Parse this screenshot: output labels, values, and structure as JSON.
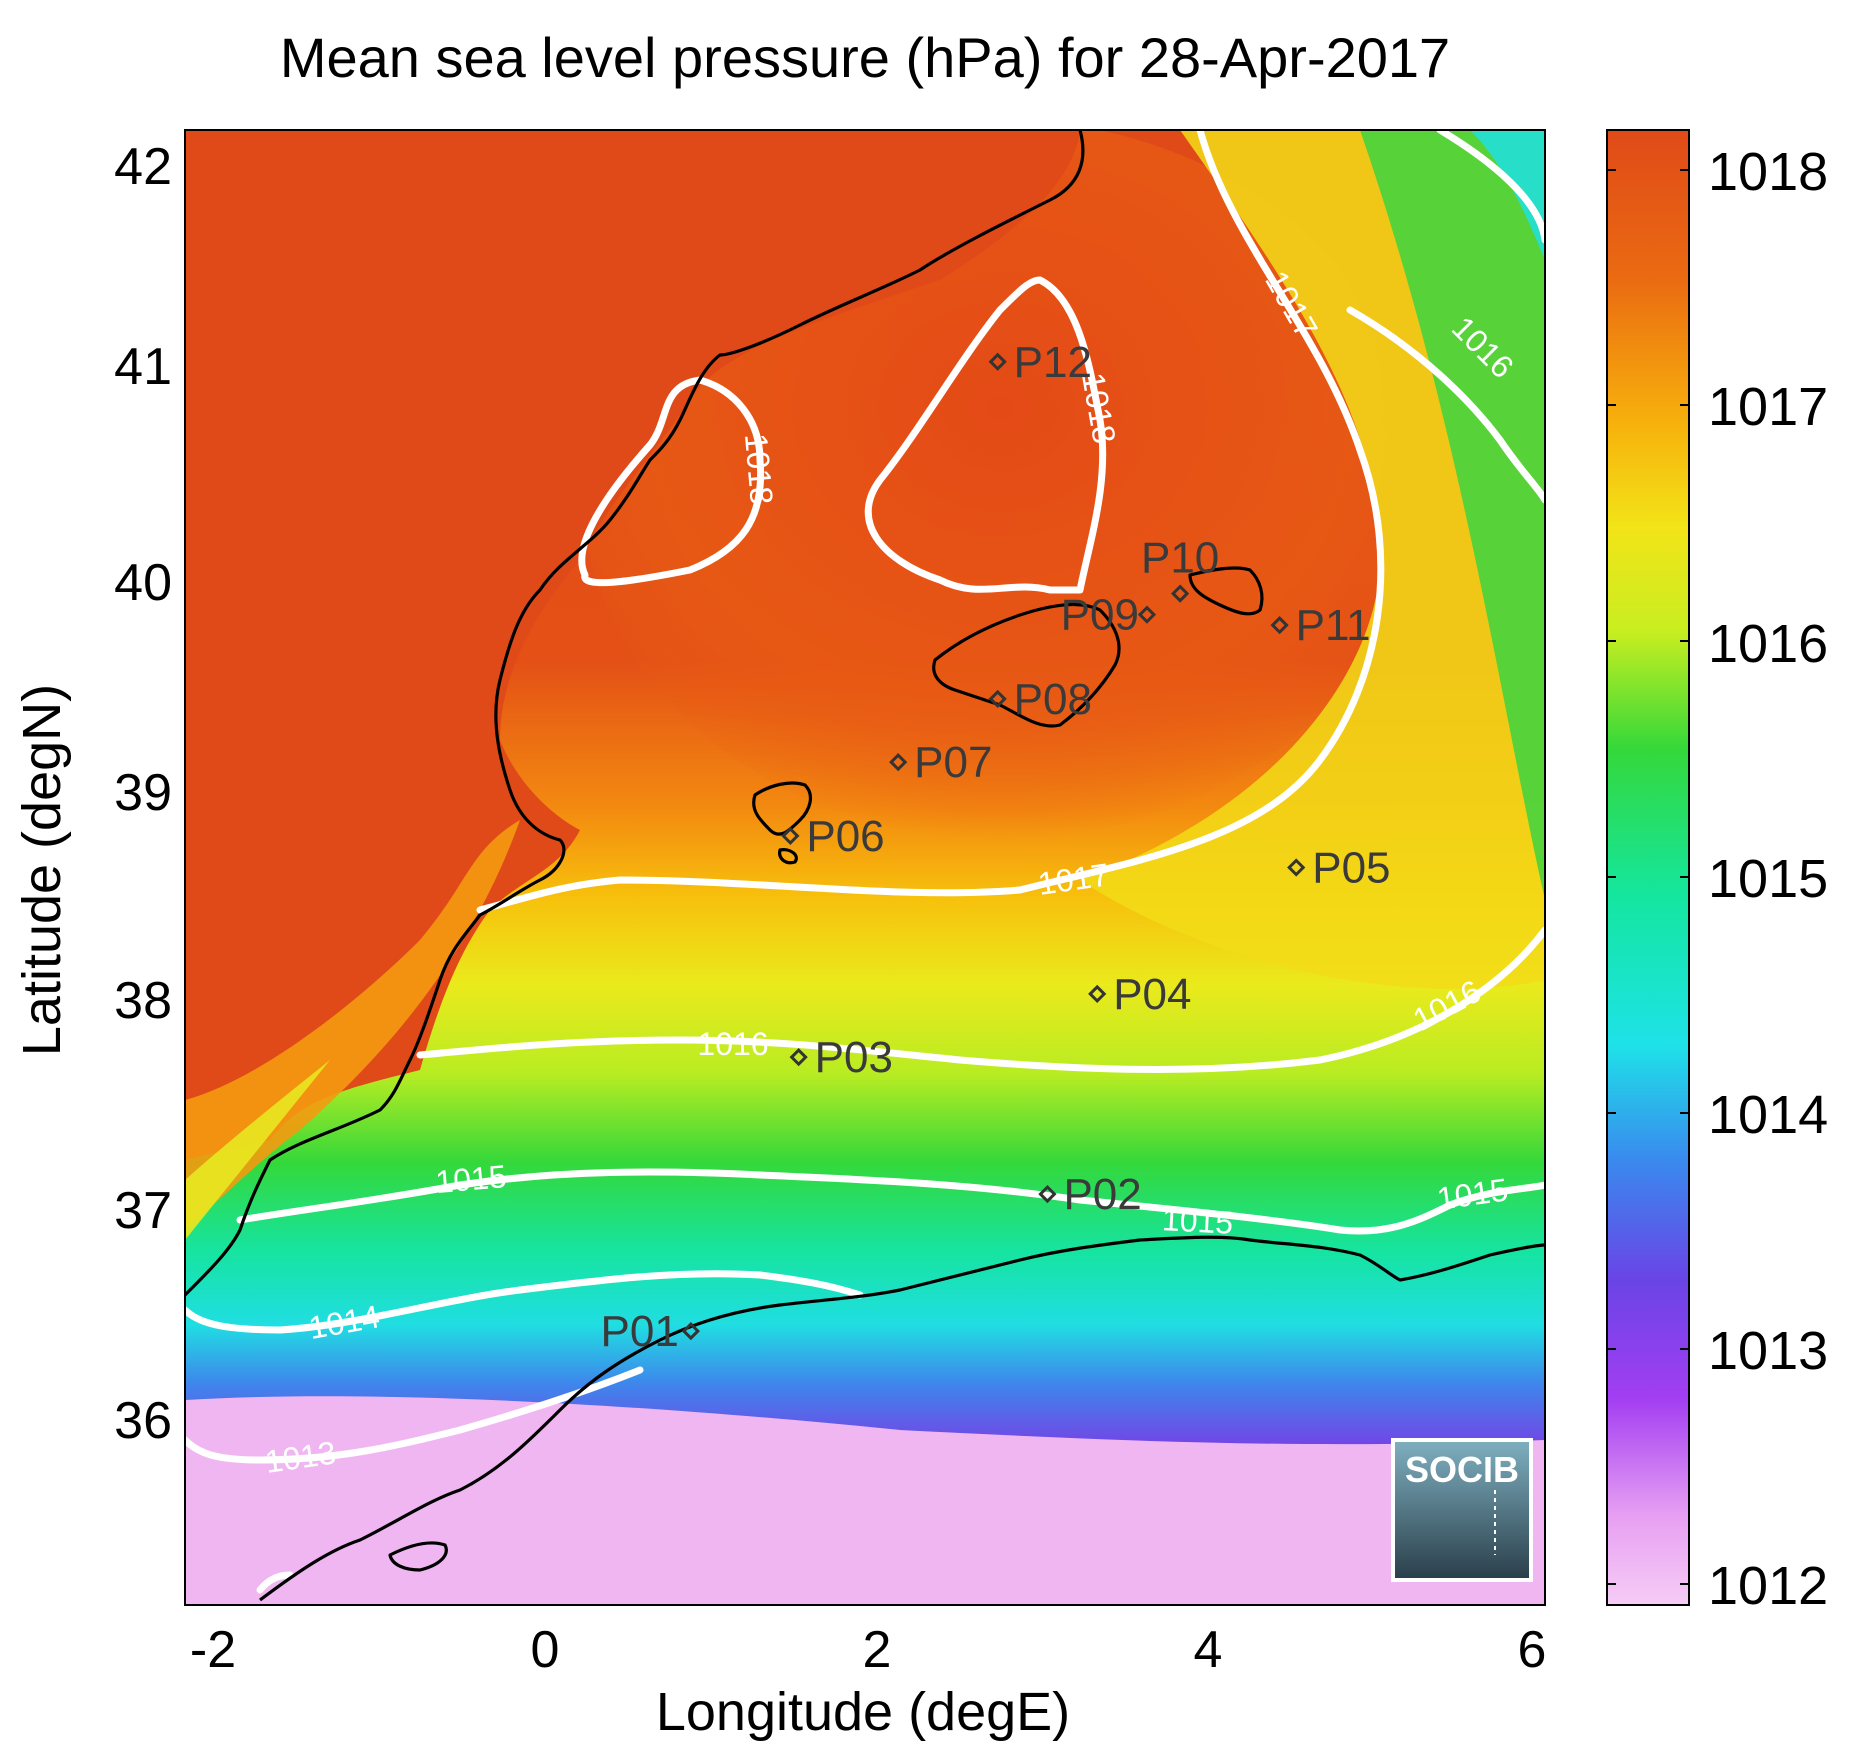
{
  "title": "Mean sea level pressure (hPa) for 28-Apr-2017",
  "xlabel": "Longitude (degE)",
  "ylabel": "Latitude (degN)",
  "x_ticks": [
    "-2",
    "0",
    "2",
    "4",
    "6"
  ],
  "y_ticks": [
    "42",
    "41",
    "40",
    "39",
    "38",
    "37",
    "36"
  ],
  "colorbar_ticks": [
    "1018",
    "1017",
    "1016",
    "1015",
    "1014",
    "1013",
    "1012"
  ],
  "contour_labels": [
    "1018",
    "1018",
    "1017",
    "1016",
    "1017",
    "1016",
    "1016",
    "1015",
    "1015",
    "1015",
    "1014",
    "1013"
  ],
  "stations": [
    {
      "id": "P01",
      "lon": 0.85,
      "lat": 36.5
    },
    {
      "id": "P02",
      "lon": 3.0,
      "lat": 37.15
    },
    {
      "id": "P03",
      "lon": 1.5,
      "lat": 37.8
    },
    {
      "id": "P04",
      "lon": 3.3,
      "lat": 38.1
    },
    {
      "id": "P05",
      "lon": 4.5,
      "lat": 38.7
    },
    {
      "id": "P06",
      "lon": 1.45,
      "lat": 38.85
    },
    {
      "id": "P07",
      "lon": 2.1,
      "lat": 39.2
    },
    {
      "id": "P08",
      "lon": 2.7,
      "lat": 39.5
    },
    {
      "id": "P09",
      "lon": 3.6,
      "lat": 39.9
    },
    {
      "id": "P10",
      "lon": 3.8,
      "lat": 40.0
    },
    {
      "id": "P11",
      "lon": 4.4,
      "lat": 39.85
    },
    {
      "id": "P12",
      "lon": 2.7,
      "lat": 41.1
    }
  ],
  "logo": {
    "text": "SOCIB"
  },
  "colors": {
    "high": "#e04a18",
    "orange": "#f5a010",
    "yellow": "#eeee20",
    "green": "#30d040",
    "cyan": "#20e0e0",
    "blue": "#4a70e8",
    "purple": "#9040f0",
    "pink": "#f0b8f0"
  },
  "chart_data": {
    "type": "heatmap",
    "variable": "Mean sea level pressure",
    "units": "hPa",
    "date": "28-Apr-2017",
    "xlim": [
      -2.2,
      6.0
    ],
    "ylim": [
      35.2,
      42.2
    ],
    "colorbar_range": [
      1011.9,
      1018.2
    ],
    "contour_levels": [
      1013,
      1014,
      1015,
      1016,
      1017,
      1018
    ]
  }
}
